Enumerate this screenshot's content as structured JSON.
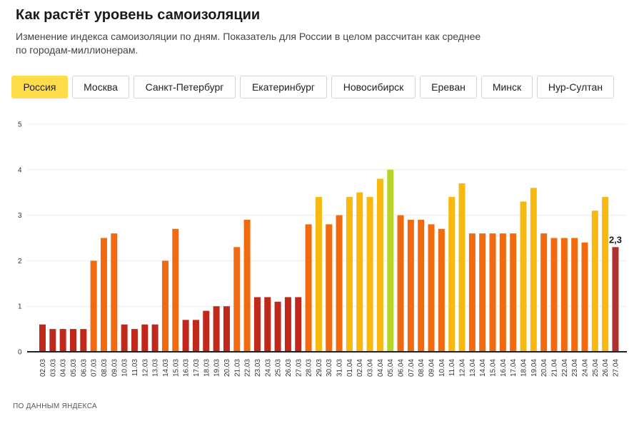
{
  "header": {
    "title": "Как растёт уровень самоизоляции",
    "subtitle_line1": "Изменение индекса самоизоляции по дням. Показатель для России в целом рассчитан как среднее",
    "subtitle_line2": "по городам-миллионерам."
  },
  "tabs": [
    {
      "label": "Россия",
      "active": true
    },
    {
      "label": "Москва",
      "active": false
    },
    {
      "label": "Санкт-Петербург",
      "active": false
    },
    {
      "label": "Екатеринбург",
      "active": false
    },
    {
      "label": "Новосибирск",
      "active": false
    },
    {
      "label": "Ереван",
      "active": false
    },
    {
      "label": "Минск",
      "active": false
    },
    {
      "label": "Нур-Султан",
      "active": false
    }
  ],
  "footer": {
    "source": "ПО ДАННЫМ ЯНДЕКСА"
  },
  "colors": {
    "active_tab": "#ffdd4a",
    "low": "#c0281b",
    "mid": "#f26a0f",
    "high": "#f7b90f",
    "peak": "#b8d42a",
    "last": "#b0302c"
  },
  "chart_data": {
    "type": "bar",
    "categories": [
      "02.03",
      "03.03",
      "04.03",
      "05.03",
      "06.03",
      "07.03",
      "08.03",
      "09.03",
      "10.03",
      "11.03",
      "12.03",
      "13.03",
      "14.03",
      "15.03",
      "16.03",
      "17.03",
      "18.03",
      "19.03",
      "20.03",
      "21.03",
      "22.03",
      "23.03",
      "24.03",
      "25.03",
      "26.03",
      "27.03",
      "28.03",
      "29.03",
      "30.03",
      "31.03",
      "01.04",
      "02.04",
      "03.04",
      "04.04",
      "05.04",
      "06.04",
      "07.04",
      "08.04",
      "09.04",
      "10.04",
      "11.04",
      "12.04",
      "13.04",
      "14.04",
      "15.04",
      "16.04",
      "17.04",
      "18.04",
      "19.04",
      "20.04",
      "21.04",
      "22.04",
      "23.04",
      "24.04",
      "25.04",
      "26.04",
      "27.04"
    ],
    "values": [
      0.6,
      0.5,
      0.5,
      0.5,
      0.5,
      2.0,
      2.5,
      2.6,
      0.6,
      0.5,
      0.6,
      0.6,
      2.0,
      2.7,
      0.7,
      0.7,
      0.9,
      1.0,
      1.0,
      2.3,
      2.9,
      1.2,
      1.2,
      1.1,
      1.2,
      1.2,
      2.8,
      3.4,
      2.8,
      3.0,
      3.4,
      3.5,
      3.4,
      3.8,
      4.0,
      3.0,
      2.9,
      2.9,
      2.8,
      2.7,
      3.4,
      3.7,
      2.6,
      2.6,
      2.6,
      2.6,
      2.6,
      3.3,
      3.6,
      2.6,
      2.5,
      2.5,
      2.5,
      2.4,
      3.1,
      3.4,
      2.3
    ],
    "y_ticks": [
      "0",
      "1",
      "2",
      "3",
      "4",
      "5"
    ],
    "ylim": [
      0,
      5
    ],
    "grid": true,
    "annotation": {
      "category": "27.04",
      "label": "2,3"
    }
  }
}
